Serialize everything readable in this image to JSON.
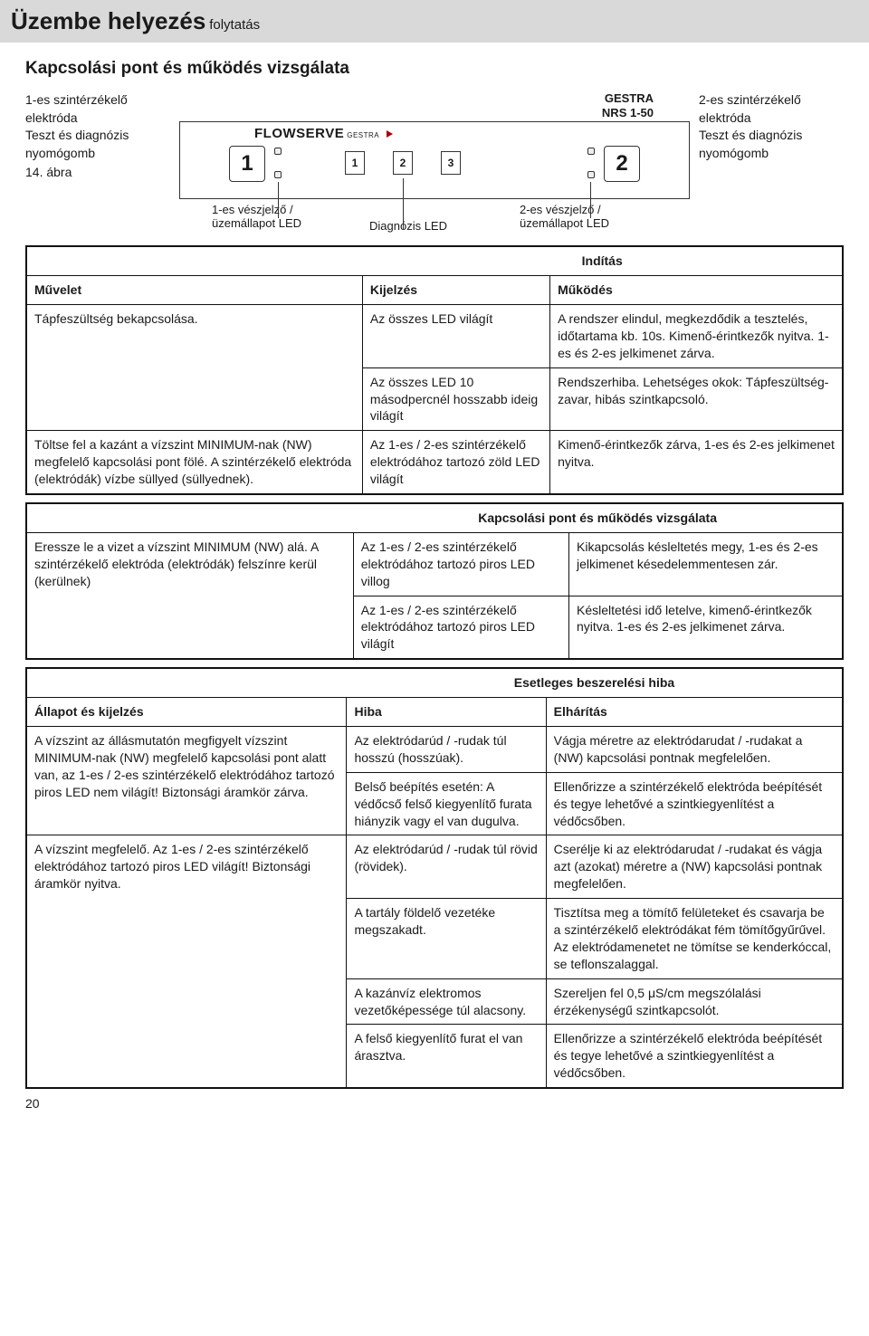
{
  "header": {
    "title": "Üzembe helyezés",
    "subtitle": "folytatás"
  },
  "section_title": "Kapcsolási pont és működés vizsgálata",
  "diagram": {
    "left": {
      "line1": "1-es szintérzékelő elektróda",
      "line2": "Teszt és diagnózis nyomógomb",
      "fig": "14. ábra"
    },
    "right": {
      "line1": "2-es szintérzékelő elektróda",
      "line2": "Teszt és diagnózis nyomógomb"
    },
    "gestra": "GESTRA",
    "model": "NRS 1-50",
    "flowserve": "FLOWSERVE",
    "flowserve_sm": "GESTRA",
    "btn1": "1",
    "btn2": "2",
    "num1": "1",
    "num2": "2",
    "num3": "3",
    "annot_left": "1-es vészjelző / üzemállapot LED",
    "annot_mid": "Diagnózis LED",
    "annot_right": "2-es vészjelző / üzemállapot LED"
  },
  "table1": {
    "head_span": "Indítás",
    "col1": "Művelet",
    "col2": "Kijelzés",
    "col3": "Működés",
    "r1c1": "Tápfeszültség bekapcsolása.",
    "r1c2a": "Az összes LED világít",
    "r1c3a": "A rendszer elindul, megkezdődik a tesztelés, időtartama kb. 10s. Kimenő-érintkezők nyitva. 1-es és 2-es jelkimenet zárva.",
    "r1c2b": "Az összes LED 10 másodpercnél hosszabb ideig világít",
    "r1c3b": "Rendszerhiba. Lehetséges okok: Tápfeszültség-zavar, hibás szintkapcsoló.",
    "r2c1": "Töltse fel a kazánt a vízszint MINIMUM-nak (NW) megfelelő kapcsolási pont fölé. A szintérzékelő elektróda (elektródák) vízbe süllyed (süllyednek).",
    "r2c2": "Az 1-es / 2-es szintérzékelő elektródához tartozó zöld LED világít",
    "r2c3": "Kimenő-érintkezők zárva, 1-es és 2-es jelkimenet nyitva."
  },
  "table2": {
    "head_span": "Kapcsolási pont és működés vizsgálata",
    "r1c1": "Eressze le a vizet a vízszint MINIMUM (NW) alá. A szintérzékelő elektróda (elektródák) felszínre kerül (kerülnek)",
    "r1c2a": "Az 1-es / 2-es szintérzékelő elektródához tartozó piros LED villog",
    "r1c3a": "Kikapcsolás késleltetés megy, 1-es és 2-es jelkimenet késedelemmentesen zár.",
    "r1c2b": "Az 1-es / 2-es szintérzékelő elektródához tartozó piros LED világít",
    "r1c3b": "Késleltetési idő letelve, kimenő-érintkezők nyitva. 1-es és 2-es jelkimenet zárva."
  },
  "table3": {
    "head_span": "Esetleges beszerelési hiba",
    "col1": "Állapot és kijelzés",
    "col2": "Hiba",
    "col3": "Elhárítás",
    "r1c1": "A vízszint az állásmutatón megfigyelt vízszint MINIMUM-nak (NW) megfelelő kapcsolási pont alatt van,  az 1-es / 2-es szintérzékelő elektródához tartozó piros LED nem világít! Biztonsági áramkör zárva.",
    "r1c2a": "Az elektródarúd / -rudak túl hosszú (hosszúak).",
    "r1c3a": "Vágja méretre az elektródarudat / -rudakat a (NW) kapcsolási pontnak megfelelően.",
    "r1c2b": "Belső beépítés esetén: A védőcső felső kiegyenlítő furata hiányzik vagy el van dugulva.",
    "r1c3b": "Ellenőrizze a szintérzékelő elektróda beépítését és tegye lehetővé a szintkiegyenlítést a védőcsőben.",
    "r2c1": "A vízszint megfelelő. Az 1-es / 2-es szintérzékelő elektródához tartozó piros LED világít! Biztonsági áramkör nyitva.",
    "r2c2a": "Az elektródarúd / -rudak túl rövid (rövidek).",
    "r2c3a": "Cserélje ki az elektródarudat / -rudakat és vágja azt (azokat) méretre a (NW) kapcsolási pontnak megfelelően.",
    "r2c2b": "A tartály földelő vezetéke megszakadt.",
    "r2c3b": "Tisztítsa meg a tömítő felületeket és csavarja be a szintérzékelő elektródákat fém tömítőgyűrűvel. Az elektródamenetet ne tömítse se kenderkóccal, se teflonszalaggal.",
    "r2c2c": "A kazánvíz elektromos vezetőképessége túl alacsony.",
    "r2c3c": "Szereljen fel 0,5 μS/cm megszólalási érzékenységű szintkapcsolót.",
    "r2c2d": "A felső kiegyenlítő furat el van árasztva.",
    "r2c3d": "Ellenőrizze a szintérzékelő elektróda beépítését és tegye lehetővé a szintkiegyenlítést a védőcsőben."
  },
  "pagenum": "20"
}
